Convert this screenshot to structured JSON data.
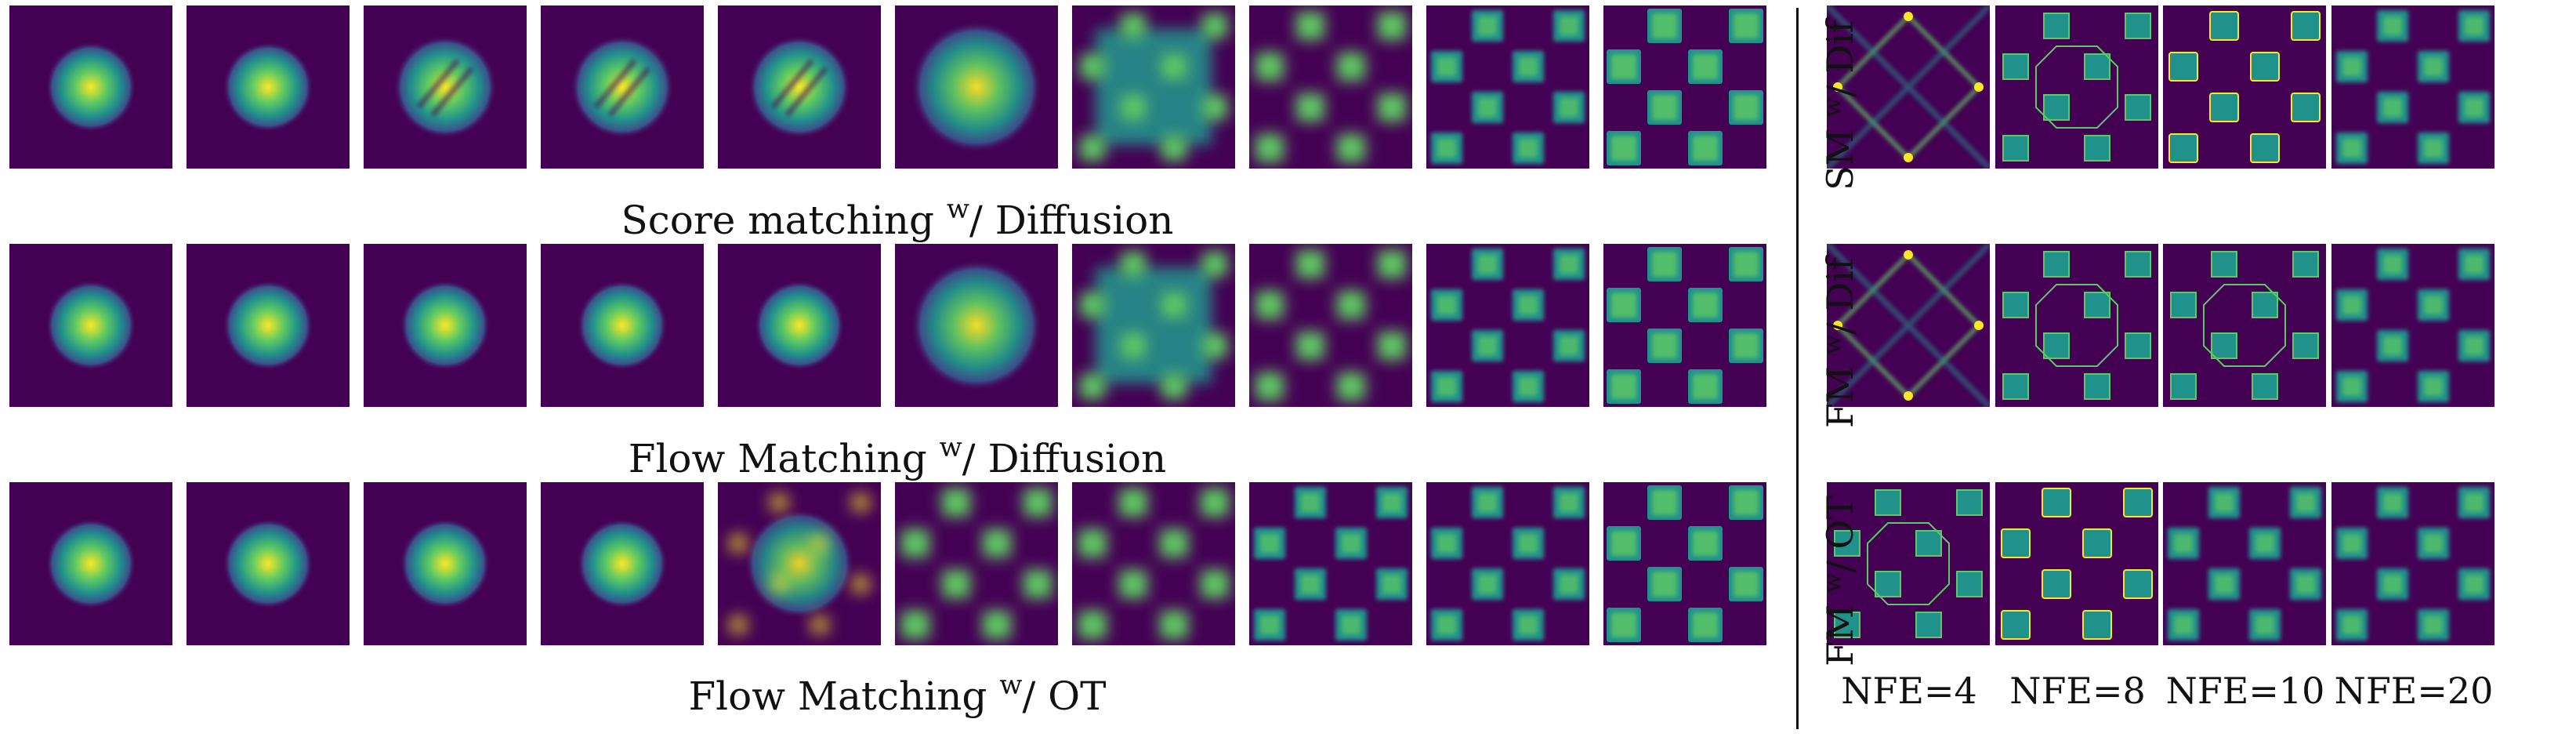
{
  "figure": {
    "left_rows": [
      {
        "id": "sm-diffusion",
        "caption_pre": "Score matching ",
        "caption_sup": "w",
        "caption_post": "/ Diffusion",
        "stages": [
          "blob",
          "blob",
          "blob-striped",
          "blob-striped",
          "blob-striped",
          "blob-spread",
          "diffuse",
          "blurry-checker",
          "checker",
          "checker-sharp"
        ]
      },
      {
        "id": "fm-diffusion",
        "caption_pre": "Flow Matching ",
        "caption_sup": "w",
        "caption_post": "/ Diffusion",
        "stages": [
          "blob",
          "blob",
          "blob",
          "blob",
          "blob",
          "blob-spread",
          "diffuse",
          "blurry-checker",
          "checker",
          "checker-sharp"
        ]
      },
      {
        "id": "fm-ot",
        "caption_pre": "Flow Matching ",
        "caption_sup": "w",
        "caption_post": "/ OT",
        "stages": [
          "blob",
          "blob",
          "blob",
          "blob",
          "blob-grid",
          "blurry-checker",
          "blurry-checker",
          "checker",
          "checker",
          "checker-sharp"
        ]
      }
    ],
    "right_rows": [
      {
        "id": "sm-dif",
        "label_pre": "SM ",
        "label_sup": "w",
        "label_post": "/ Dif",
        "stages": [
          "lattice-lines",
          "octagon",
          "checker-ring",
          "checker"
        ]
      },
      {
        "id": "fm-dif",
        "label_pre": "FM ",
        "label_sup": "w",
        "label_post": "/ Dif",
        "stages": [
          "lattice-lines",
          "octagon",
          "octagon",
          "checker"
        ]
      },
      {
        "id": "fm-ot-right",
        "label_pre": "FM ",
        "label_sup": "w",
        "label_post": "/ OT",
        "stages": [
          "octagon",
          "checker-ring",
          "checker",
          "checker"
        ]
      }
    ],
    "nfe_labels": [
      "NFE=4",
      "NFE=8",
      "NFE=10",
      "NFE=20"
    ],
    "colors": {
      "background": "#440154",
      "mid": "#3b528b",
      "teal": "#21918c",
      "green": "#5ec962",
      "yellow": "#fde725"
    }
  }
}
